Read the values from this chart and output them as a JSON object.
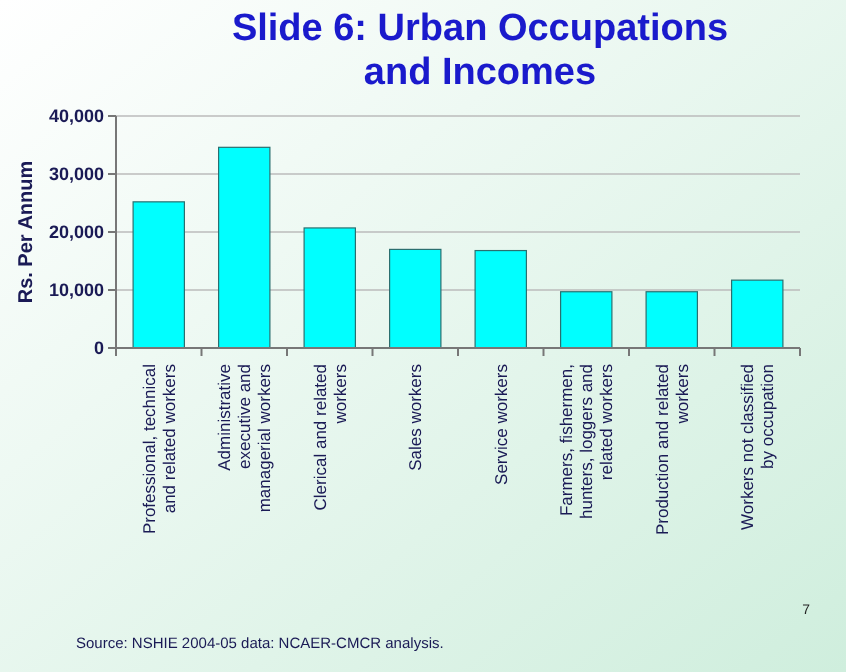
{
  "chart_data": {
    "type": "bar",
    "title": "Slide 6: Urban Occupations and Incomes",
    "ylabel": "Rs. Per Annum",
    "categories": [
      "Professional, technical and related workers",
      "Administrative executive and managerial workers",
      "Clerical and related workers",
      "Sales workers",
      "Service workers",
      "Farmers, fishermen, hunters, loggers and related workers",
      "Production and related workers",
      "Workers not classified by occupation"
    ],
    "values": [
      25200,
      34600,
      20700,
      17000,
      16800,
      9700,
      9700,
      11700
    ],
    "color": "#00ffff",
    "ylim": [
      0,
      40000
    ],
    "yticks": [
      {
        "value": 0,
        "label": "0"
      },
      {
        "value": 10000,
        "label": "10,000"
      },
      {
        "value": 20000,
        "label": "20,000"
      },
      {
        "value": 30000,
        "label": "30,000"
      },
      {
        "value": 40000,
        "label": "40,000"
      }
    ],
    "grid": "y",
    "annotations": [
      "7",
      "Source: NSHIE 2004-05 data: NCAER-CMCR analysis."
    ]
  }
}
